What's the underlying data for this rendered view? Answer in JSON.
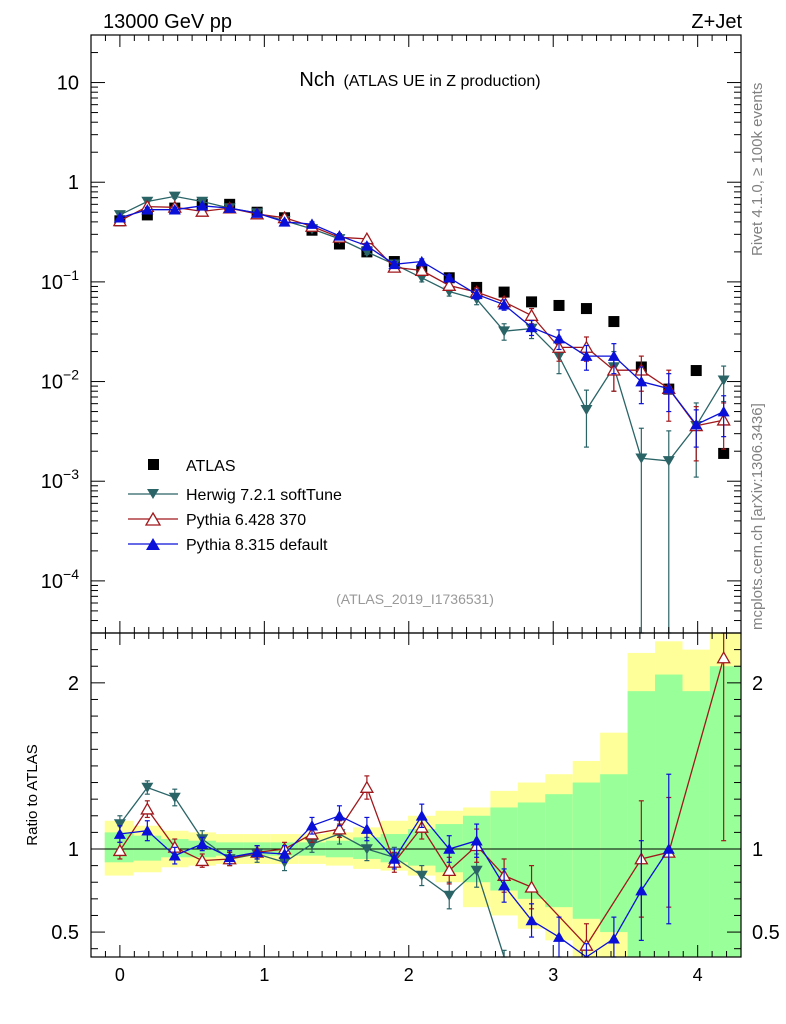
{
  "header": {
    "left": "13000 GeV pp",
    "right": "Z+Jet",
    "title_main": "Nch",
    "title_sub": "(ATLAS UE in Z production)",
    "analysis_id": "(ATLAS_2019_I1736531)",
    "side_top": "Rivet 4.1.0, ≥ 100k events",
    "side_bottom": "mcplots.cern.ch [arXiv:1306.3436]"
  },
  "colors": {
    "atlas": "#000000",
    "herwig": "#2a6467",
    "pythia6": "#a0181c",
    "pythia8": "#0a10d8",
    "band_outer": "#ffff99",
    "band_inner": "#99ff99"
  },
  "chart_data": [
    {
      "type": "scatter",
      "panel": "main",
      "title": "Nch (ATLAS UE in Z production)",
      "xlabel": "",
      "ylabel": "",
      "yscale": "log",
      "xlim": [
        -0.2,
        4.3
      ],
      "ylim": [
        3e-05,
        30
      ],
      "yticks": [
        {
          "value": 0.0001,
          "base": "10",
          "exp": "−4"
        },
        {
          "value": 0.001,
          "base": "10",
          "exp": "−3"
        },
        {
          "value": 0.01,
          "base": "10",
          "exp": "−2"
        },
        {
          "value": 0.1,
          "base": "10",
          "exp": "−1"
        },
        {
          "value": 1,
          "base": "1",
          "exp": ""
        },
        {
          "value": 10,
          "base": "10",
          "exp": ""
        }
      ],
      "legend_position": "bottom-left",
      "series": [
        {
          "name": "ATLAS",
          "marker": "square",
          "x": [
            0.0,
            0.19,
            0.38,
            0.57,
            0.76,
            0.95,
            1.14,
            1.33,
            1.52,
            1.71,
            1.9,
            2.09,
            2.28,
            2.47,
            2.66,
            2.85,
            3.04,
            3.23,
            3.42,
            3.61,
            3.8,
            3.99,
            4.18
          ],
          "y": [
            0.41,
            0.47,
            0.55,
            0.6,
            0.6,
            0.5,
            0.44,
            0.33,
            0.24,
            0.2,
            0.16,
            0.13,
            0.11,
            0.088,
            0.079,
            0.063,
            0.058,
            0.054,
            0.04,
            0.014,
            0.0084,
            0.0129,
            0.0019
          ],
          "err": []
        },
        {
          "name": "Herwig 7.2.1 softTune",
          "marker": "triangle-down",
          "x": [
            0.0,
            0.19,
            0.38,
            0.57,
            0.76,
            0.95,
            1.14,
            1.33,
            1.52,
            1.71,
            1.9,
            2.09,
            2.28,
            2.47,
            2.66,
            2.85,
            3.04,
            3.23,
            3.42,
            3.61,
            3.8,
            3.99,
            4.18
          ],
          "y": [
            0.47,
            0.64,
            0.72,
            0.64,
            0.55,
            0.49,
            0.41,
            0.34,
            0.27,
            0.2,
            0.15,
            0.11,
            0.08,
            0.067,
            0.032,
            0.034,
            0.018,
            0.0052,
            0.014,
            0.0017,
            0.0016,
            0.0036,
            0.0103
          ],
          "err": [
            0.02,
            0.03,
            0.03,
            0.03,
            0.02,
            0.02,
            0.02,
            0.02,
            0.015,
            0.012,
            0.01,
            0.01,
            0.008,
            0.008,
            0.006,
            0.007,
            0.006,
            0.003,
            0.006,
            0.0017,
            0.0016,
            0.0025,
            0.004
          ]
        },
        {
          "name": "Pythia 6.428 370",
          "marker": "triangle-up-open",
          "x": [
            0.0,
            0.19,
            0.38,
            0.57,
            0.76,
            0.95,
            1.14,
            1.33,
            1.52,
            1.71,
            1.9,
            2.09,
            2.28,
            2.47,
            2.66,
            2.85,
            3.04,
            3.23,
            3.42,
            3.61,
            3.8,
            3.99,
            4.18
          ],
          "y": [
            0.41,
            0.57,
            0.56,
            0.51,
            0.55,
            0.48,
            0.44,
            0.36,
            0.28,
            0.27,
            0.14,
            0.13,
            0.092,
            0.079,
            0.063,
            0.046,
            0.022,
            0.022,
            0.013,
            0.013,
            0.0085,
            0.0036,
            0.0041
          ],
          "err": [
            0.02,
            0.03,
            0.03,
            0.025,
            0.025,
            0.02,
            0.02,
            0.02,
            0.015,
            0.015,
            0.01,
            0.01,
            0.008,
            0.008,
            0.007,
            0.008,
            0.006,
            0.006,
            0.005,
            0.005,
            0.0045,
            0.002,
            0.002
          ]
        },
        {
          "name": "Pythia 8.315 default",
          "marker": "triangle-up",
          "x": [
            0.0,
            0.19,
            0.38,
            0.57,
            0.76,
            0.95,
            1.14,
            1.33,
            1.52,
            1.71,
            1.9,
            2.09,
            2.28,
            2.47,
            2.66,
            2.85,
            3.04,
            3.23,
            3.42,
            3.61,
            3.8,
            3.99,
            4.18
          ],
          "y": [
            0.44,
            0.53,
            0.53,
            0.58,
            0.55,
            0.49,
            0.4,
            0.38,
            0.29,
            0.23,
            0.15,
            0.16,
            0.11,
            0.075,
            0.059,
            0.035,
            0.027,
            0.018,
            0.018,
            0.01,
            0.0085,
            0.0037,
            0.005
          ],
          "err": [
            0.02,
            0.03,
            0.03,
            0.025,
            0.025,
            0.02,
            0.02,
            0.02,
            0.015,
            0.015,
            0.01,
            0.01,
            0.008,
            0.008,
            0.007,
            0.006,
            0.006,
            0.005,
            0.006,
            0.004,
            0.0035,
            0.0015,
            0.0022
          ]
        }
      ]
    },
    {
      "type": "scatter",
      "panel": "ratio",
      "title": "",
      "xlabel": "",
      "ylabel": "Ratio to ATLAS",
      "xlim": [
        -0.2,
        4.3
      ],
      "ylim": [
        0.35,
        2.3
      ],
      "xticks": [
        0,
        1,
        2,
        3,
        4
      ],
      "yticks": [
        0.5,
        1,
        2
      ],
      "bands": {
        "edges": [
          -0.105,
          0.095,
          0.285,
          0.475,
          0.665,
          0.855,
          1.045,
          1.235,
          1.425,
          1.615,
          1.805,
          1.995,
          2.185,
          2.375,
          2.565,
          2.755,
          2.945,
          3.135,
          3.325,
          3.515,
          3.705,
          3.895,
          4.085,
          4.3
        ],
        "outer": [
          [
            0.84,
            1.17
          ],
          [
            0.86,
            1.14
          ],
          [
            0.89,
            1.11
          ],
          [
            0.9,
            1.1
          ],
          [
            0.91,
            1.09
          ],
          [
            0.91,
            1.09
          ],
          [
            0.91,
            1.09
          ],
          [
            0.91,
            1.09
          ],
          [
            0.9,
            1.1
          ],
          [
            0.88,
            1.13
          ],
          [
            0.87,
            1.17
          ],
          [
            0.84,
            1.2
          ],
          [
            0.8,
            1.23
          ],
          [
            0.65,
            1.25
          ],
          [
            0.6,
            1.35
          ],
          [
            0.52,
            1.4
          ],
          [
            0.45,
            1.45
          ],
          [
            0.35,
            1.53
          ],
          [
            0.3,
            1.7
          ],
          [
            0.3,
            2.18
          ],
          [
            0.3,
            2.25
          ],
          [
            0.3,
            2.2
          ],
          [
            0.3,
            2.3
          ]
        ],
        "inner": [
          [
            0.92,
            1.1
          ],
          [
            0.93,
            1.08
          ],
          [
            0.95,
            1.06
          ],
          [
            0.95,
            1.05
          ],
          [
            0.96,
            1.04
          ],
          [
            0.96,
            1.04
          ],
          [
            0.96,
            1.04
          ],
          [
            0.96,
            1.04
          ],
          [
            0.95,
            1.05
          ],
          [
            0.94,
            1.07
          ],
          [
            0.92,
            1.09
          ],
          [
            0.9,
            1.12
          ],
          [
            0.86,
            1.15
          ],
          [
            0.8,
            1.2
          ],
          [
            0.75,
            1.25
          ],
          [
            0.7,
            1.28
          ],
          [
            0.65,
            1.33
          ],
          [
            0.58,
            1.4
          ],
          [
            0.5,
            1.45
          ],
          [
            0.35,
            1.95
          ],
          [
            0.3,
            2.05
          ],
          [
            0.3,
            1.95
          ],
          [
            0.3,
            2.1
          ]
        ]
      },
      "series": [
        {
          "name": "Herwig 7.2.1 softTune",
          "marker": "triangle-down",
          "x": [
            0.0,
            0.19,
            0.38,
            0.57,
            0.76,
            0.95,
            1.14,
            1.33,
            1.52,
            1.71,
            1.9,
            2.09,
            2.28,
            2.47,
            2.66
          ],
          "y": [
            1.15,
            1.37,
            1.31,
            1.06,
            0.94,
            0.97,
            0.92,
            1.03,
            1.09,
            1.0,
            0.95,
            0.84,
            0.72,
            0.87,
            0.33
          ],
          "err": [
            0.05,
            0.04,
            0.05,
            0.05,
            0.04,
            0.05,
            0.05,
            0.05,
            0.06,
            0.07,
            0.06,
            0.06,
            0.08,
            0.1,
            0.06
          ]
        },
        {
          "name": "Pythia 6.428 370",
          "marker": "triangle-up-open",
          "x": [
            0.0,
            0.19,
            0.38,
            0.57,
            0.76,
            0.95,
            1.14,
            1.33,
            1.52,
            1.71,
            1.9,
            2.09,
            2.28,
            2.47,
            2.66,
            2.85,
            3.23,
            3.61,
            3.8,
            4.18
          ],
          "y": [
            0.99,
            1.24,
            1.01,
            0.93,
            0.94,
            0.98,
            1.0,
            1.09,
            1.12,
            1.37,
            0.92,
            1.13,
            0.87,
            1.02,
            0.84,
            0.77,
            0.42,
            0.94,
            0.98,
            2.15
          ],
          "err": [
            0.05,
            0.05,
            0.05,
            0.04,
            0.04,
            0.04,
            0.04,
            0.05,
            0.05,
            0.07,
            0.06,
            0.07,
            0.08,
            0.1,
            0.1,
            0.13,
            0.13,
            0.35,
            0.33,
            1.1
          ]
        },
        {
          "name": "Pythia 8.315 default",
          "marker": "triangle-up",
          "x": [
            0.0,
            0.19,
            0.38,
            0.57,
            0.76,
            0.95,
            1.14,
            1.33,
            1.52,
            1.71,
            1.9,
            2.09,
            2.28,
            2.47,
            2.66,
            2.85,
            3.04,
            3.23,
            3.42,
            3.61,
            3.8
          ],
          "y": [
            1.09,
            1.11,
            0.96,
            1.03,
            0.95,
            0.98,
            0.97,
            1.14,
            1.2,
            1.12,
            0.94,
            1.2,
            1.0,
            1.05,
            0.78,
            0.57,
            0.47,
            0.33,
            0.46,
            0.75,
            1.0
          ],
          "err": [
            0.05,
            0.06,
            0.05,
            0.04,
            0.04,
            0.04,
            0.05,
            0.05,
            0.06,
            0.07,
            0.06,
            0.07,
            0.08,
            0.1,
            0.1,
            0.1,
            0.12,
            0.1,
            0.13,
            0.3,
            0.45
          ]
        }
      ]
    }
  ]
}
